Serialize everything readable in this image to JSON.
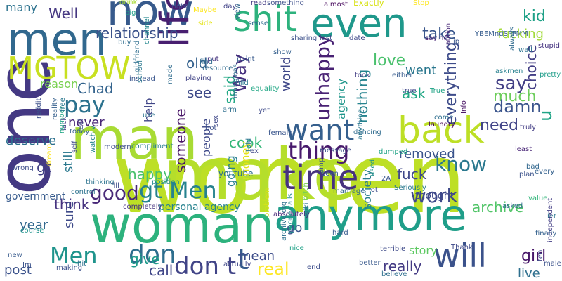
{
  "words": [
    {
      "text": "women",
      "color": "#bddf26"
    },
    {
      "text": "make",
      "color": "#b5de2b"
    },
    {
      "text": "man",
      "color": "#a8db34"
    },
    {
      "text": "one",
      "color": "#443983"
    },
    {
      "text": "woman",
      "color": "#2db27d"
    },
    {
      "text": "anymore",
      "color": "#1f9e89"
    },
    {
      "text": "men",
      "color": "#31688e"
    },
    {
      "text": "now",
      "color": "#375a8c"
    },
    {
      "text": "life",
      "color": "#481f70"
    },
    {
      "text": "shit",
      "color": "#2db27d"
    },
    {
      "text": "even",
      "color": "#1f988b"
    },
    {
      "text": "back",
      "color": "#bddf26"
    },
    {
      "text": "time",
      "color": "#46327e"
    },
    {
      "text": "will",
      "color": "#3b528b"
    },
    {
      "text": "MGTOW",
      "color": "#c8e020"
    },
    {
      "text": "want",
      "color": "#355f8d"
    },
    {
      "text": "don",
      "color": "#2e6e8e"
    },
    {
      "text": "t",
      "color": "#365c8d"
    },
    {
      "text": "Men",
      "color": "#1f948c"
    },
    {
      "text": "pay",
      "color": "#2c728e"
    },
    {
      "text": "thing",
      "color": "#481a6c"
    },
    {
      "text": "don t",
      "color": "#414487"
    },
    {
      "text": "gt Men",
      "color": "#26828e"
    },
    {
      "text": "good",
      "color": "#482878"
    },
    {
      "text": "work",
      "color": "#3e4989"
    },
    {
      "text": "know",
      "color": "#2a788e"
    },
    {
      "text": "relationship",
      "color": "#3b528b"
    },
    {
      "text": "take",
      "color": "#39568c"
    },
    {
      "text": "kid",
      "color": "#1fa187"
    },
    {
      "text": "fucking",
      "color": "#a2da37"
    },
    {
      "text": "love",
      "color": "#4ac16d"
    },
    {
      "text": "say",
      "color": "#423f85"
    },
    {
      "text": "Chad",
      "color": "#33638d"
    },
    {
      "text": "Well",
      "color": "#453781"
    },
    {
      "text": "many",
      "color": "#2c728e"
    },
    {
      "text": "see",
      "color": "#3e4a89"
    },
    {
      "text": "Way",
      "color": "#46307e"
    },
    {
      "text": "said",
      "color": "#22a884"
    },
    {
      "text": "world",
      "color": "#3f4788"
    },
    {
      "text": "unhappy",
      "color": "#482173"
    },
    {
      "text": "agency",
      "color": "#1f968b"
    },
    {
      "text": "ask",
      "color": "#22a785"
    },
    {
      "text": "much",
      "color": "#6ccd5a"
    },
    {
      "text": "damn",
      "color": "#3a548c"
    },
    {
      "text": "choice",
      "color": "#433e85"
    },
    {
      "text": "need",
      "color": "#414487"
    },
    {
      "text": "everything",
      "color": "#3e4c8a"
    },
    {
      "text": "nothing",
      "color": "#25838e"
    },
    {
      "text": "went",
      "color": "#2a778e"
    },
    {
      "text": "old",
      "color": "#34618d"
    },
    {
      "text": "reason",
      "color": "#7ad151"
    },
    {
      "text": "help",
      "color": "#404688"
    },
    {
      "text": "never",
      "color": "#482677"
    },
    {
      "text": "people",
      "color": "#3e4989"
    },
    {
      "text": "cook",
      "color": "#35b779"
    },
    {
      "text": "deserve",
      "color": "#2d708e"
    },
    {
      "text": "gt",
      "color": "#424186"
    },
    {
      "text": "removed",
      "color": "#3a548c"
    },
    {
      "text": "society",
      "color": "#287d8e"
    },
    {
      "text": "someone",
      "color": "#481467"
    },
    {
      "text": "still",
      "color": "#2a788e"
    },
    {
      "text": "happy",
      "color": "#4ac16d"
    },
    {
      "text": "fuck",
      "color": "#3f4889"
    },
    {
      "text": "archive",
      "color": "#52c569"
    },
    {
      "text": "year",
      "color": "#31688e"
    },
    {
      "text": "think",
      "color": "#46337f"
    },
    {
      "text": "sure",
      "color": "#3e4a89"
    },
    {
      "text": "going",
      "color": "#277f8e"
    },
    {
      "text": "mean",
      "color": "#3d4d8a"
    },
    {
      "text": "really",
      "color": "#443b84"
    },
    {
      "text": "real",
      "color": "#fde725"
    },
    {
      "text": "give",
      "color": "#1f9a8a"
    },
    {
      "text": "call",
      "color": "#404688"
    },
    {
      "text": "post",
      "color": "#3b528b"
    },
    {
      "text": "live",
      "color": "#2e6f8e"
    },
    {
      "text": "girl",
      "color": "#481769"
    },
    {
      "text": "u",
      "color": "#20a486"
    },
    {
      "text": "thought",
      "color": "#3f4889"
    },
    {
      "text": "story",
      "color": "#5ec962"
    },
    {
      "text": "money",
      "color": "#e5e419"
    },
    {
      "text": "go",
      "color": "#3a548c"
    },
    {
      "text": "government",
      "color": "#375b8d"
    },
    {
      "text": "personal agency",
      "color": "#26828e"
    },
    {
      "text": "youtube",
      "color": "#2e6e8e"
    },
    {
      "text": "drink",
      "color": "#a8db34"
    },
    {
      "text": "big",
      "color": "#1f9e89"
    },
    {
      "text": "right",
      "color": "#3e4a89"
    },
    {
      "text": "day",
      "color": "#414287"
    },
    {
      "text": "read",
      "color": "#443a83"
    },
    {
      "text": "something",
      "color": "#3d4e8a"
    },
    {
      "text": "almost",
      "color": "#46085c"
    },
    {
      "text": "Exactly",
      "color": "#d8e219"
    },
    {
      "text": "Stop",
      "color": "#fde725"
    },
    {
      "text": "view",
      "color": "#31678e"
    },
    {
      "text": "sense",
      "color": "#2f6c8e"
    },
    {
      "text": "Maybe",
      "color": "#fde725"
    },
    {
      "text": "side",
      "color": "#e5e419"
    },
    {
      "text": "buy",
      "color": "#2f6c8e"
    },
    {
      "text": "channel",
      "color": "#24878e"
    },
    {
      "text": "put",
      "color": "#46337f"
    },
    {
      "text": "point",
      "color": "#375a8c"
    },
    {
      "text": "sharing",
      "color": "#3c4f8a"
    },
    {
      "text": "last",
      "color": "#3c4f8a"
    },
    {
      "text": "date",
      "color": "#3f4889"
    },
    {
      "text": "took",
      "color": "#433d84"
    },
    {
      "text": "saying",
      "color": "#482475"
    },
    {
      "text": "jp",
      "color": "#3a548c"
    },
    {
      "text": "caution",
      "color": "#482878"
    },
    {
      "text": "YBEMndSFFMM",
      "color": "#365c8d"
    },
    {
      "text": "wall",
      "color": "#2c728e"
    },
    {
      "text": "stupid",
      "color": "#463480"
    },
    {
      "text": "show",
      "color": "#35608d"
    },
    {
      "text": "either",
      "color": "#375b8d"
    },
    {
      "text": "always",
      "color": "#2f6b8e"
    },
    {
      "text": "askmen",
      "color": "#27808e"
    },
    {
      "text": "pretty",
      "color": "#1e9d89"
    },
    {
      "text": "true",
      "color": "#3f4788"
    },
    {
      "text": "True",
      "color": "#20a386"
    },
    {
      "text": "come",
      "color": "#2e6e8e"
    },
    {
      "text": "laundry",
      "color": "#440154"
    },
    {
      "text": "Info",
      "color": "#471164"
    },
    {
      "text": "truly",
      "color": "#433d84"
    },
    {
      "text": "least",
      "color": "#482576"
    },
    {
      "text": "bad",
      "color": "#31678e"
    },
    {
      "text": "plan",
      "color": "#3b528b"
    },
    {
      "text": "every",
      "color": "#34618d"
    },
    {
      "text": "let",
      "color": "#2b758e"
    },
    {
      "text": "independent",
      "color": "#433e85"
    },
    {
      "text": "value",
      "color": "#32b67a"
    },
    {
      "text": "asked",
      "color": "#2f6c8e"
    },
    {
      "text": "finally",
      "color": "#34618d"
    },
    {
      "text": "ten",
      "color": "#3f4788"
    },
    {
      "text": "male",
      "color": "#3b518b"
    },
    {
      "text": "Thank",
      "color": "#3e4989"
    },
    {
      "text": "terrible",
      "color": "#3e4a89"
    },
    {
      "text": "better",
      "color": "#38598c"
    },
    {
      "text": "believe",
      "color": "#2e6e8e"
    },
    {
      "text": "end",
      "color": "#3d4e8a"
    },
    {
      "text": "actually",
      "color": "#3f4788"
    },
    {
      "text": "hard",
      "color": "#375b8d"
    },
    {
      "text": "nice",
      "color": "#1fa287"
    },
    {
      "text": "absolutely",
      "color": "#482979"
    },
    {
      "text": "wiki",
      "color": "#2c738e"
    },
    {
      "text": "archive org",
      "color": "#2d708e"
    },
    {
      "text": "phone calls",
      "color": "#23898e"
    },
    {
      "text": "problem",
      "color": "#d8e219"
    },
    {
      "text": "bitch",
      "color": "#7ad151"
    },
    {
      "text": "amp",
      "color": "#3a538b"
    },
    {
      "text": "seen",
      "color": "#375b8d"
    },
    {
      "text": "marriage",
      "color": "#31688e"
    },
    {
      "text": "2A",
      "color": "#39558c"
    },
    {
      "text": "used",
      "color": "#1f978b"
    },
    {
      "text": "lot",
      "color": "#3d4d8a"
    },
    {
      "text": "Seriously",
      "color": "#29798e"
    },
    {
      "text": "dancing",
      "color": "#2f6b8e"
    },
    {
      "text": "message",
      "color": "#3c4f8a"
    },
    {
      "text": "anything",
      "color": "#2a768e"
    },
    {
      "text": "dumped",
      "color": "#20a486"
    },
    {
      "text": "told",
      "color": "#2a778e"
    },
    {
      "text": "ex",
      "color": "#3f4788"
    },
    {
      "text": "female",
      "color": "#39558c"
    },
    {
      "text": "yet",
      "color": "#3e4a89"
    },
    {
      "text": "use",
      "color": "#2c718e"
    },
    {
      "text": "bot",
      "color": "#3c508b"
    },
    {
      "text": "sex",
      "color": "#3f4889"
    },
    {
      "text": "arm",
      "color": "#2e6f8e"
    },
    {
      "text": "equality",
      "color": "#22a785"
    },
    {
      "text": "manginas",
      "color": "#2f6c8e"
    },
    {
      "text": "child",
      "color": "#2b748e"
    },
    {
      "text": "resource",
      "color": "#2f6b8e"
    },
    {
      "text": "find",
      "color": "#2f6b8e"
    },
    {
      "text": "made",
      "color": "#2f6c8e"
    },
    {
      "text": "playing",
      "color": "#414487"
    },
    {
      "text": "girlfriend",
      "color": "#2e6e8e"
    },
    {
      "text": "instead",
      "color": "#39558c"
    },
    {
      "text": "school",
      "color": "#2a788e"
    },
    {
      "text": "feel",
      "color": "#3b518b"
    },
    {
      "text": "thinking",
      "color": "#2c738e"
    },
    {
      "text": "position",
      "color": "#23898e"
    },
    {
      "text": "fill",
      "color": "#3e4c8a"
    },
    {
      "text": "completely",
      "color": "#46327e"
    },
    {
      "text": "compliment",
      "color": "#287d8e"
    },
    {
      "text": "modern",
      "color": "#3d4d8a"
    },
    {
      "text": "today",
      "color": "#34618d"
    },
    {
      "text": "lack",
      "color": "#433d84"
    },
    {
      "text": "number",
      "color": "#22a785"
    },
    {
      "text": "free",
      "color": "#2a788e"
    },
    {
      "text": "reality",
      "color": "#35608d"
    },
    {
      "text": "self",
      "color": "#3e4a89"
    },
    {
      "text": "watch v",
      "color": "#25838e"
    },
    {
      "text": "expect",
      "color": "#443983"
    },
    {
      "text": "wrong",
      "color": "#3d4d8a"
    },
    {
      "text": "reddit",
      "color": "#3c4f8a"
    },
    {
      "text": "dream",
      "color": "#fde725"
    },
    {
      "text": "control",
      "color": "#2c728e"
    },
    {
      "text": "course",
      "color": "#1f948c"
    },
    {
      "text": "new",
      "color": "#375a8c"
    },
    {
      "text": "Im",
      "color": "#3b528b"
    },
    {
      "text": "making",
      "color": "#3c508b"
    },
    {
      "text": "hit",
      "color": "#2d718e"
    }
  ]
}
